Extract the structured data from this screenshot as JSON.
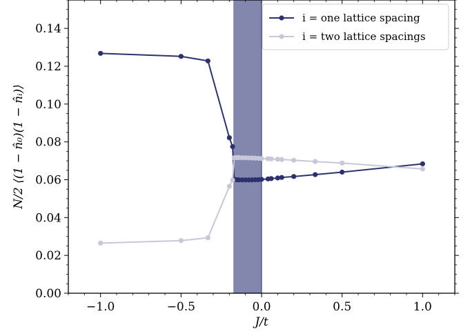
{
  "chart_data": {
    "type": "line",
    "xlabel": "J/t",
    "ylabel": "N/2 ⟨(1 − n̂₀)(1 − n̂ᵢ)⟩",
    "xlim": [
      -1.2,
      1.2
    ],
    "ylim": [
      0.0,
      0.155
    ],
    "xticks": [
      -1.0,
      -0.5,
      0.0,
      0.5,
      1.0
    ],
    "xtick_labels": [
      "−1.0",
      "−0.5",
      "0.0",
      "0.5",
      "1.0"
    ],
    "yticks": [
      0.0,
      0.02,
      0.04,
      0.06,
      0.08,
      0.1,
      0.12,
      0.14
    ],
    "ytick_labels": [
      "0.00",
      "0.02",
      "0.04",
      "0.06",
      "0.08",
      "0.10",
      "0.12",
      "0.14"
    ],
    "shaded_region": {
      "x_start": -0.175,
      "x_end": 0.0,
      "color": "#8387ad"
    },
    "legend_position": "top-right",
    "grid": false,
    "series": [
      {
        "name": "i = one lattice spacing",
        "color": "#2b316e",
        "points": [
          [
            -1.0,
            0.1268
          ],
          [
            -0.5,
            0.1252
          ],
          [
            -0.333,
            0.1228
          ],
          [
            -0.2,
            0.0822
          ],
          [
            -0.18,
            0.0775
          ],
          [
            -0.17,
            0.0602
          ],
          [
            -0.16,
            0.06
          ],
          [
            -0.15,
            0.06
          ],
          [
            -0.14,
            0.0599
          ],
          [
            -0.12,
            0.0599
          ],
          [
            -0.1,
            0.0599
          ],
          [
            -0.08,
            0.0599
          ],
          [
            -0.06,
            0.0599
          ],
          [
            -0.04,
            0.06
          ],
          [
            -0.02,
            0.06
          ],
          [
            0.0,
            0.0602
          ],
          [
            0.04,
            0.0604
          ],
          [
            0.06,
            0.0606
          ],
          [
            0.1,
            0.0609
          ],
          [
            0.125,
            0.0612
          ],
          [
            0.2,
            0.0617
          ],
          [
            0.333,
            0.0627
          ],
          [
            0.5,
            0.064
          ],
          [
            1.0,
            0.0684
          ]
        ]
      },
      {
        "name": "i = two lattice spacings",
        "color": "#c7c7d9",
        "points": [
          [
            -1.0,
            0.0265
          ],
          [
            -0.5,
            0.0278
          ],
          [
            -0.333,
            0.0293
          ],
          [
            -0.2,
            0.0565
          ],
          [
            -0.18,
            0.0598
          ],
          [
            -0.17,
            0.0716
          ],
          [
            -0.16,
            0.0717
          ],
          [
            -0.15,
            0.0717
          ],
          [
            -0.14,
            0.0717
          ],
          [
            -0.12,
            0.0716
          ],
          [
            -0.1,
            0.0716
          ],
          [
            -0.08,
            0.0715
          ],
          [
            -0.06,
            0.0715
          ],
          [
            -0.04,
            0.0714
          ],
          [
            -0.02,
            0.0713
          ],
          [
            0.0,
            0.0712
          ],
          [
            0.04,
            0.0711
          ],
          [
            0.06,
            0.071
          ],
          [
            0.1,
            0.0708
          ],
          [
            0.125,
            0.0707
          ],
          [
            0.2,
            0.0703
          ],
          [
            0.333,
            0.0696
          ],
          [
            0.5,
            0.0688
          ],
          [
            1.0,
            0.0657
          ]
        ]
      }
    ]
  }
}
